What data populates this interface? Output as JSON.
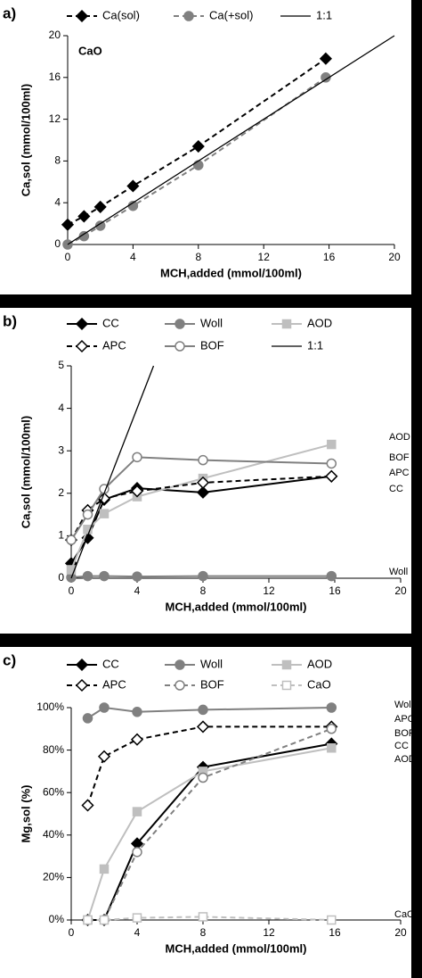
{
  "chart_data": [
    {
      "type": "line",
      "label": "a)",
      "annotations": [
        "CaO"
      ],
      "xlabel": "MCH,added (mmol/100ml)",
      "ylabel": "Ca,sol (mmol/100ml)",
      "x": [
        0,
        1,
        2,
        4,
        8,
        15.8
      ],
      "xlim": [
        0,
        20
      ],
      "xticks": [
        0,
        4,
        8,
        12,
        16,
        20
      ],
      "ylim": [
        0,
        20
      ],
      "yticks": [
        0,
        4,
        8,
        12,
        16,
        20
      ],
      "series": [
        {
          "name": "Ca(sol)",
          "color": "#000000",
          "marker": "diamond",
          "filled": true,
          "dashed": true,
          "values": [
            1.9,
            2.7,
            3.6,
            5.6,
            9.4,
            17.8
          ]
        },
        {
          "name": "Ca(+sol)",
          "color": "#808080",
          "marker": "circle",
          "filled": true,
          "dashed": true,
          "values": [
            0,
            0.8,
            1.8,
            3.7,
            7.6,
            16
          ]
        },
        {
          "name": "1:1",
          "color": "#000000",
          "marker": "none",
          "filled": false,
          "dashed": false,
          "x": [
            0,
            20
          ],
          "values": [
            0,
            20
          ]
        }
      ]
    },
    {
      "type": "line",
      "label": "b)",
      "annotations": [
        "AOD",
        "BOF",
        "APC",
        "CC",
        "Woll"
      ],
      "xlabel": "MCH,added (mmol/100ml)",
      "ylabel": "Ca,sol (mmol/100ml)",
      "x": [
        0,
        1,
        2,
        4,
        8,
        15.8
      ],
      "xlim": [
        0,
        20
      ],
      "xticks": [
        0,
        4,
        8,
        12,
        16,
        20
      ],
      "ylim": [
        0,
        5
      ],
      "yticks": [
        0,
        1,
        2,
        3,
        4,
        5
      ],
      "series": [
        {
          "name": "CC",
          "color": "#000000",
          "marker": "diamond",
          "filled": true,
          "dashed": false,
          "values": [
            0.35,
            0.95,
            1.85,
            2.12,
            2.02,
            2.4
          ]
        },
        {
          "name": "Woll",
          "color": "#808080",
          "marker": "circle",
          "filled": true,
          "dashed": false,
          "values": [
            0.02,
            0.05,
            0.05,
            0.04,
            0.05,
            0.05
          ]
        },
        {
          "name": "AOD",
          "color": "#bfbfbf",
          "marker": "square",
          "filled": true,
          "dashed": false,
          "values": [
            0.2,
            1.15,
            1.52,
            1.92,
            2.35,
            3.15
          ]
        },
        {
          "name": "APC",
          "color": "#000000",
          "marker": "diamond",
          "filled": false,
          "dashed": true,
          "values": [
            0.9,
            1.6,
            1.88,
            2.05,
            2.25,
            2.4
          ]
        },
        {
          "name": "BOF",
          "color": "#808080",
          "marker": "circle",
          "filled": false,
          "dashed": false,
          "values": [
            0.9,
            1.5,
            2.1,
            2.85,
            2.78,
            2.7
          ]
        },
        {
          "name": "1:1",
          "color": "#000000",
          "marker": "none",
          "filled": false,
          "dashed": false,
          "x": [
            0,
            5
          ],
          "values": [
            0,
            5
          ]
        }
      ]
    },
    {
      "type": "line",
      "label": "c)",
      "annotations": [
        "Woll",
        "APC",
        "BOF",
        "CC",
        "AOD",
        "CaO"
      ],
      "xlabel": "MCH,added (mmol/100ml)",
      "ylabel": "Mg,sol (%)",
      "x": [
        1,
        2,
        4,
        8,
        15.8
      ],
      "xlim": [
        0,
        20
      ],
      "xticks": [
        0,
        4,
        8,
        12,
        16,
        20
      ],
      "ylim": [
        0,
        100
      ],
      "yticks": [
        {
          "value": 0,
          "label": "0%"
        },
        {
          "value": 20,
          "label": "20%"
        },
        {
          "value": 40,
          "label": "40%"
        },
        {
          "value": 60,
          "label": "60%"
        },
        {
          "value": 80,
          "label": "80%"
        },
        {
          "value": 100,
          "label": "100%"
        }
      ],
      "series": [
        {
          "name": "CC",
          "color": "#000000",
          "marker": "diamond",
          "filled": true,
          "dashed": false,
          "values": [
            0,
            0,
            36,
            72,
            83
          ]
        },
        {
          "name": "Woll",
          "color": "#808080",
          "marker": "circle",
          "filled": true,
          "dashed": false,
          "values": [
            95,
            100,
            98,
            99,
            100
          ]
        },
        {
          "name": "AOD",
          "color": "#bfbfbf",
          "marker": "square",
          "filled": true,
          "dashed": false,
          "values": [
            0,
            24,
            51,
            70,
            81
          ]
        },
        {
          "name": "APC",
          "color": "#000000",
          "marker": "diamond",
          "filled": false,
          "dashed": true,
          "values": [
            54,
            77,
            85,
            91,
            91
          ]
        },
        {
          "name": "BOF",
          "color": "#808080",
          "marker": "circle",
          "filled": false,
          "dashed": true,
          "values": [
            0,
            0,
            32,
            67,
            90
          ]
        },
        {
          "name": "CaO",
          "color": "#bfbfbf",
          "marker": "square",
          "filled": false,
          "dashed": true,
          "values": [
            0,
            0,
            1,
            1.5,
            0
          ]
        }
      ]
    }
  ]
}
